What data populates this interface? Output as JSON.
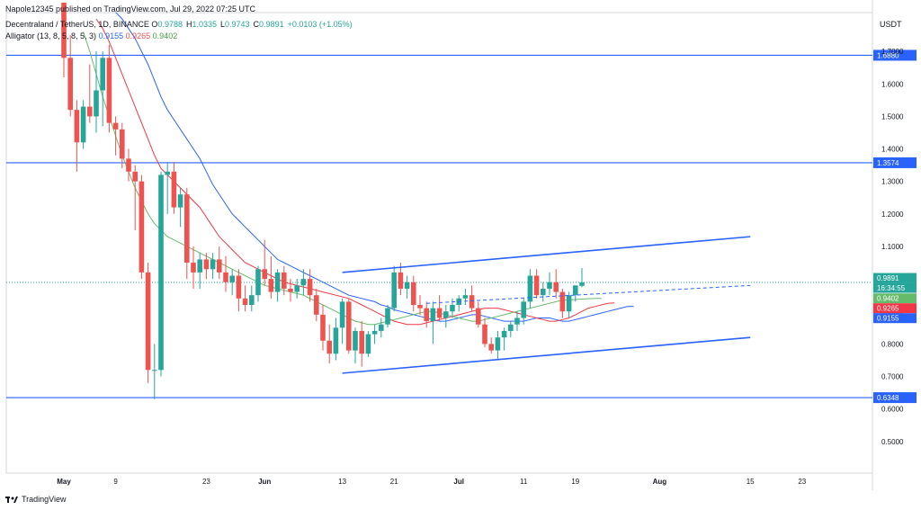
{
  "header": {
    "published": "Napole12345 published on TradingView.com, Jul 29, 2022 07:25 UTC",
    "symbol": "Decentraland / TetherUS, 1D, BINANCE",
    "ohlc": [
      {
        "k": "O",
        "v": "0.9788"
      },
      {
        "k": "H",
        "v": "1.0335"
      },
      {
        "k": "L",
        "v": "0.9743"
      },
      {
        "k": "C",
        "v": "0.9891"
      },
      {
        "k": "",
        "v": "+0.0103 (+1.05%)"
      }
    ],
    "indicator_name": "Alligator (13, 8, 5, 8, 5, 3)",
    "indicator_values": [
      "0.9155",
      "0.9265",
      "0.9402"
    ]
  },
  "footer": {
    "brand": "TradingView"
  },
  "colors": {
    "up": "#26a69a",
    "down": "#ef5350",
    "jaw": "#2962ff",
    "teeth": "#f23645",
    "lips": "#66bb6a",
    "hline": "#2962ff"
  },
  "chart_data": {
    "type": "candlestick",
    "y_axis_unit": "USDT",
    "ylim": [
      0.45,
      1.8
    ],
    "y_ticks": [
      "0.5000",
      "0.6000",
      "0.7000",
      "0.8000",
      "0.9000",
      "1.0000",
      "1.1000",
      "1.2000",
      "1.3000",
      "1.4000",
      "1.5000",
      "1.6000",
      "1.7000"
    ],
    "x_ticks": [
      {
        "label": "May",
        "day": 0
      },
      {
        "label": "9",
        "day": 8
      },
      {
        "label": "23",
        "day": 22
      },
      {
        "label": "Jun",
        "day": 31
      },
      {
        "label": "13",
        "day": 43
      },
      {
        "label": "21",
        "day": 51
      },
      {
        "label": "Jul",
        "day": 61
      },
      {
        "label": "11",
        "day": 71
      },
      {
        "label": "19",
        "day": 79
      },
      {
        "label": "Aug",
        "day": 92
      },
      {
        "label": "15",
        "day": 106
      },
      {
        "label": "23",
        "day": 114
      }
    ],
    "candles": [
      [
        1.85,
        1.85,
        1.62,
        1.68
      ],
      [
        1.68,
        1.75,
        1.5,
        1.52
      ],
      [
        1.52,
        1.55,
        1.33,
        1.42
      ],
      [
        1.42,
        1.55,
        1.4,
        1.53
      ],
      [
        1.53,
        1.66,
        1.48,
        1.5
      ],
      [
        1.5,
        1.7,
        1.45,
        1.58
      ],
      [
        1.58,
        1.7,
        1.47,
        1.68
      ],
      [
        1.68,
        1.72,
        1.45,
        1.48
      ],
      [
        1.48,
        1.5,
        1.38,
        1.46
      ],
      [
        1.46,
        1.48,
        1.34,
        1.37
      ],
      [
        1.37,
        1.4,
        1.3,
        1.33
      ],
      [
        1.33,
        1.35,
        1.15,
        1.3
      ],
      [
        1.3,
        1.32,
        1.0,
        1.02
      ],
      [
        1.02,
        1.05,
        0.68,
        0.72
      ],
      [
        0.72,
        0.8,
        0.63,
        0.72
      ],
      [
        0.72,
        1.33,
        0.7,
        1.32
      ],
      [
        1.32,
        1.36,
        1.2,
        1.33
      ],
      [
        1.33,
        1.36,
        1.2,
        1.22
      ],
      [
        1.22,
        1.28,
        1.16,
        1.26
      ],
      [
        1.26,
        1.28,
        1.0,
        1.05
      ],
      [
        1.05,
        1.1,
        0.97,
        1.02
      ],
      [
        1.02,
        1.08,
        0.97,
        1.06
      ],
      [
        1.06,
        1.08,
        1.0,
        1.03
      ],
      [
        1.03,
        1.08,
        1.0,
        1.06
      ],
      [
        1.06,
        1.1,
        1.0,
        1.02
      ],
      [
        1.02,
        1.07,
        0.96,
        0.99
      ],
      [
        0.99,
        1.03,
        0.95,
        1.01
      ],
      [
        1.01,
        1.03,
        0.9,
        0.94
      ],
      [
        0.94,
        0.98,
        0.9,
        0.92
      ],
      [
        0.92,
        0.98,
        0.9,
        0.95
      ],
      [
        0.95,
        1.04,
        0.93,
        1.03
      ],
      [
        1.03,
        1.12,
        0.98,
        1.0
      ],
      [
        1.0,
        1.07,
        0.94,
        0.96
      ],
      [
        0.96,
        1.03,
        0.93,
        1.02
      ],
      [
        1.02,
        1.04,
        0.95,
        0.97
      ],
      [
        0.97,
        1.0,
        0.93,
        0.96
      ],
      [
        0.96,
        1.0,
        0.94,
        0.98
      ],
      [
        0.98,
        1.03,
        0.95,
        1.0
      ],
      [
        1.0,
        1.03,
        0.93,
        0.95
      ],
      [
        0.95,
        0.97,
        0.87,
        0.89
      ],
      [
        0.89,
        0.92,
        0.78,
        0.81
      ],
      [
        0.81,
        0.86,
        0.74,
        0.77
      ],
      [
        0.77,
        0.88,
        0.75,
        0.85
      ],
      [
        0.85,
        0.94,
        0.8,
        0.93
      ],
      [
        0.93,
        0.94,
        0.77,
        0.78
      ],
      [
        0.78,
        0.85,
        0.74,
        0.84
      ],
      [
        0.84,
        0.87,
        0.73,
        0.77
      ],
      [
        0.77,
        0.84,
        0.76,
        0.83
      ],
      [
        0.83,
        0.86,
        0.8,
        0.84
      ],
      [
        0.84,
        0.88,
        0.82,
        0.86
      ],
      [
        0.86,
        0.92,
        0.85,
        0.91
      ],
      [
        0.91,
        1.04,
        0.9,
        1.02
      ],
      [
        1.02,
        1.05,
        0.95,
        0.97
      ],
      [
        0.97,
        1.01,
        0.94,
        0.99
      ],
      [
        0.99,
        1.01,
        0.9,
        0.92
      ],
      [
        0.92,
        0.95,
        0.89,
        0.91
      ],
      [
        0.91,
        0.93,
        0.85,
        0.87
      ],
      [
        0.87,
        0.93,
        0.8,
        0.91
      ],
      [
        0.91,
        0.95,
        0.87,
        0.88
      ],
      [
        0.88,
        0.92,
        0.85,
        0.9
      ],
      [
        0.9,
        0.94,
        0.88,
        0.92
      ],
      [
        0.92,
        0.95,
        0.9,
        0.94
      ],
      [
        0.94,
        0.97,
        0.92,
        0.95
      ],
      [
        0.95,
        0.98,
        0.9,
        0.91
      ],
      [
        0.91,
        0.93,
        0.85,
        0.86
      ],
      [
        0.86,
        0.88,
        0.79,
        0.8
      ],
      [
        0.8,
        0.82,
        0.77,
        0.78
      ],
      [
        0.78,
        0.84,
        0.75,
        0.82
      ],
      [
        0.82,
        0.85,
        0.78,
        0.84
      ],
      [
        0.84,
        0.87,
        0.82,
        0.86
      ],
      [
        0.86,
        0.9,
        0.84,
        0.88
      ],
      [
        0.88,
        0.94,
        0.86,
        0.93
      ],
      [
        0.93,
        1.03,
        0.91,
        1.01
      ],
      [
        1.01,
        1.03,
        0.94,
        0.95
      ],
      [
        0.95,
        0.99,
        0.93,
        0.97
      ],
      [
        0.97,
        1.02,
        0.95,
        0.99
      ],
      [
        0.99,
        1.03,
        0.94,
        0.96
      ],
      [
        0.96,
        0.97,
        0.88,
        0.9
      ],
      [
        0.9,
        0.96,
        0.88,
        0.95
      ],
      [
        0.95,
        0.98,
        0.93,
        0.98
      ],
      [
        0.9788,
        1.0335,
        0.9743,
        0.9891
      ]
    ],
    "alligator": {
      "jaw": [
        1.82,
        1.8,
        1.77,
        1.74,
        1.7,
        1.66,
        1.61,
        1.56,
        1.52,
        1.49,
        1.46,
        1.43,
        1.4,
        1.37,
        1.33,
        1.29,
        1.26,
        1.23,
        1.2,
        1.18,
        1.16,
        1.14,
        1.12,
        1.1,
        1.08,
        1.06,
        1.05,
        1.04,
        1.03,
        1.02,
        1.01,
        1.0,
        0.99,
        0.98,
        0.97,
        0.96,
        0.95,
        0.945,
        0.94,
        0.935,
        0.93,
        0.92,
        0.915,
        0.905,
        0.9,
        0.895,
        0.89,
        0.885,
        0.88,
        0.875,
        0.87,
        0.87,
        0.875,
        0.88,
        0.885,
        0.89,
        0.89,
        0.885,
        0.88,
        0.875,
        0.87,
        0.87,
        0.87,
        0.87,
        0.875,
        0.88,
        0.88,
        0.88,
        0.875,
        0.87,
        0.87,
        0.875,
        0.88,
        0.885,
        0.89,
        0.895,
        0.9,
        0.905,
        0.91,
        0.915,
        0.9155
      ],
      "teeth": [
        1.8,
        1.77,
        1.73,
        1.68,
        1.63,
        1.58,
        1.53,
        1.48,
        1.43,
        1.38,
        1.34,
        1.32,
        1.3,
        1.28,
        1.26,
        1.24,
        1.22,
        1.19,
        1.16,
        1.13,
        1.11,
        1.09,
        1.07,
        1.05,
        1.04,
        1.03,
        1.02,
        1.01,
        1.0,
        0.99,
        0.985,
        0.98,
        0.975,
        0.97,
        0.965,
        0.96,
        0.955,
        0.95,
        0.945,
        0.94,
        0.93,
        0.92,
        0.91,
        0.9,
        0.89,
        0.88,
        0.87,
        0.865,
        0.86,
        0.86,
        0.86,
        0.865,
        0.87,
        0.875,
        0.88,
        0.885,
        0.89,
        0.895,
        0.9,
        0.905,
        0.91,
        0.91,
        0.91,
        0.905,
        0.9,
        0.895,
        0.89,
        0.885,
        0.88,
        0.875,
        0.87,
        0.87,
        0.875,
        0.88,
        0.89,
        0.9,
        0.91,
        0.915,
        0.92,
        0.925,
        0.9265
      ],
      "lips": [
        1.76,
        1.7,
        1.63,
        1.56,
        1.5,
        1.44,
        1.38,
        1.33,
        1.28,
        1.24,
        1.2,
        1.17,
        1.15,
        1.13,
        1.12,
        1.11,
        1.1,
        1.09,
        1.08,
        1.07,
        1.06,
        1.05,
        1.04,
        1.03,
        1.02,
        1.01,
        1.0,
        0.99,
        0.98,
        0.975,
        0.97,
        0.965,
        0.96,
        0.955,
        0.95,
        0.94,
        0.93,
        0.92,
        0.91,
        0.9,
        0.89,
        0.88,
        0.87,
        0.865,
        0.86,
        0.86,
        0.865,
        0.87,
        0.875,
        0.88,
        0.885,
        0.89,
        0.895,
        0.9,
        0.9,
        0.895,
        0.89,
        0.885,
        0.88,
        0.875,
        0.87,
        0.87,
        0.875,
        0.88,
        0.885,
        0.89,
        0.895,
        0.9,
        0.905,
        0.91,
        0.915,
        0.92,
        0.925,
        0.93,
        0.935,
        0.935,
        0.937,
        0.938,
        0.939,
        0.94,
        0.9402
      ]
    },
    "horizontal_levels": [
      "1.6880",
      "1.3574",
      "0.6348"
    ],
    "channel": {
      "upper": [
        [
          43,
          1.02
        ],
        [
          106,
          1.13
        ]
      ],
      "lower": [
        [
          43,
          0.71
        ],
        [
          106,
          0.82
        ]
      ],
      "mid": [
        [
          56,
          0.925
        ],
        [
          106,
          0.98
        ]
      ]
    },
    "price_labels": [
      {
        "text": "0.9891",
        "value": 0.9891,
        "color": "#26a69a"
      },
      {
        "text": "16:34:55",
        "value": 0.9891,
        "color": "#26a69a"
      },
      {
        "text": "0.9402",
        "value": 0.9402,
        "color": "#66bb6a"
      },
      {
        "text": "0.9265",
        "value": 0.9265,
        "color": "#f23645"
      },
      {
        "text": "0.9155",
        "value": 0.9155,
        "color": "#2962ff"
      }
    ]
  }
}
